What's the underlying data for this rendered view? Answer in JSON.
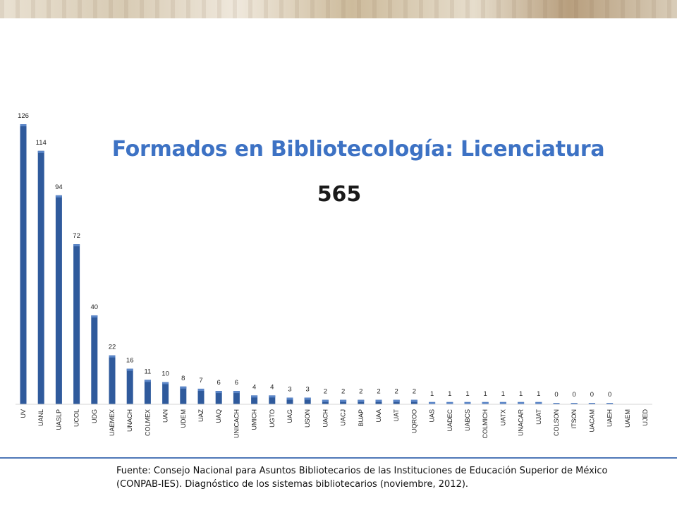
{
  "title": "Formados en Bibliotecología: Licenciatura",
  "total": "565",
  "source_note": "Fuente: Consejo Nacional para Asuntos Bibliotecarios de las Instituciones de Educación Superior de México (CONPAB-IES). Diagnóstico de los sistemas bibliotecarios (noviembre, 2012).",
  "colors": {
    "bar": "#2f5a9c",
    "bar_highlight": "#5b86c8",
    "title": "#3d72c4",
    "footer_rule": "#4f78b8"
  },
  "chart_data": {
    "type": "bar",
    "categories": [
      "UV",
      "UANL",
      "UASLP",
      "UCOL",
      "UDG",
      "UAEMEX",
      "UNACH",
      "COLMEX",
      "UAN",
      "UDEM",
      "UAZ",
      "UAQ",
      "UNICACH",
      "UMICH",
      "UGTO",
      "UAG",
      "USON",
      "UACH",
      "UACJ",
      "BUAP",
      "UAA",
      "UAT",
      "UQROO",
      "UAS",
      "UADEC",
      "UABCS",
      "COLMICH",
      "UATX",
      "UNACAR",
      "UJAT",
      "COLSON",
      "ITSON",
      "UACAM",
      "UAEH",
      "UAEM",
      "UJED"
    ],
    "values": [
      126,
      114,
      94,
      72,
      40,
      22,
      16,
      11,
      10,
      8,
      7,
      6,
      6,
      4,
      4,
      3,
      3,
      2,
      2,
      2,
      2,
      2,
      2,
      1,
      1,
      1,
      1,
      1,
      1,
      1,
      0,
      0,
      0,
      0,
      null,
      null
    ],
    "value_labels": [
      "126",
      "114",
      "94",
      "72",
      "40",
      "22",
      "16",
      "11",
      "10",
      "8",
      "7",
      "6",
      "6",
      "4",
      "4",
      "3",
      "3",
      "2",
      "2",
      "2",
      "2",
      "2",
      "2",
      "1",
      "1",
      "1",
      "1",
      "1",
      "1",
      "1",
      "0",
      "0",
      "0",
      "0",
      "",
      ""
    ],
    "ylim": [
      0,
      130
    ],
    "grid": false,
    "legend": "none"
  }
}
